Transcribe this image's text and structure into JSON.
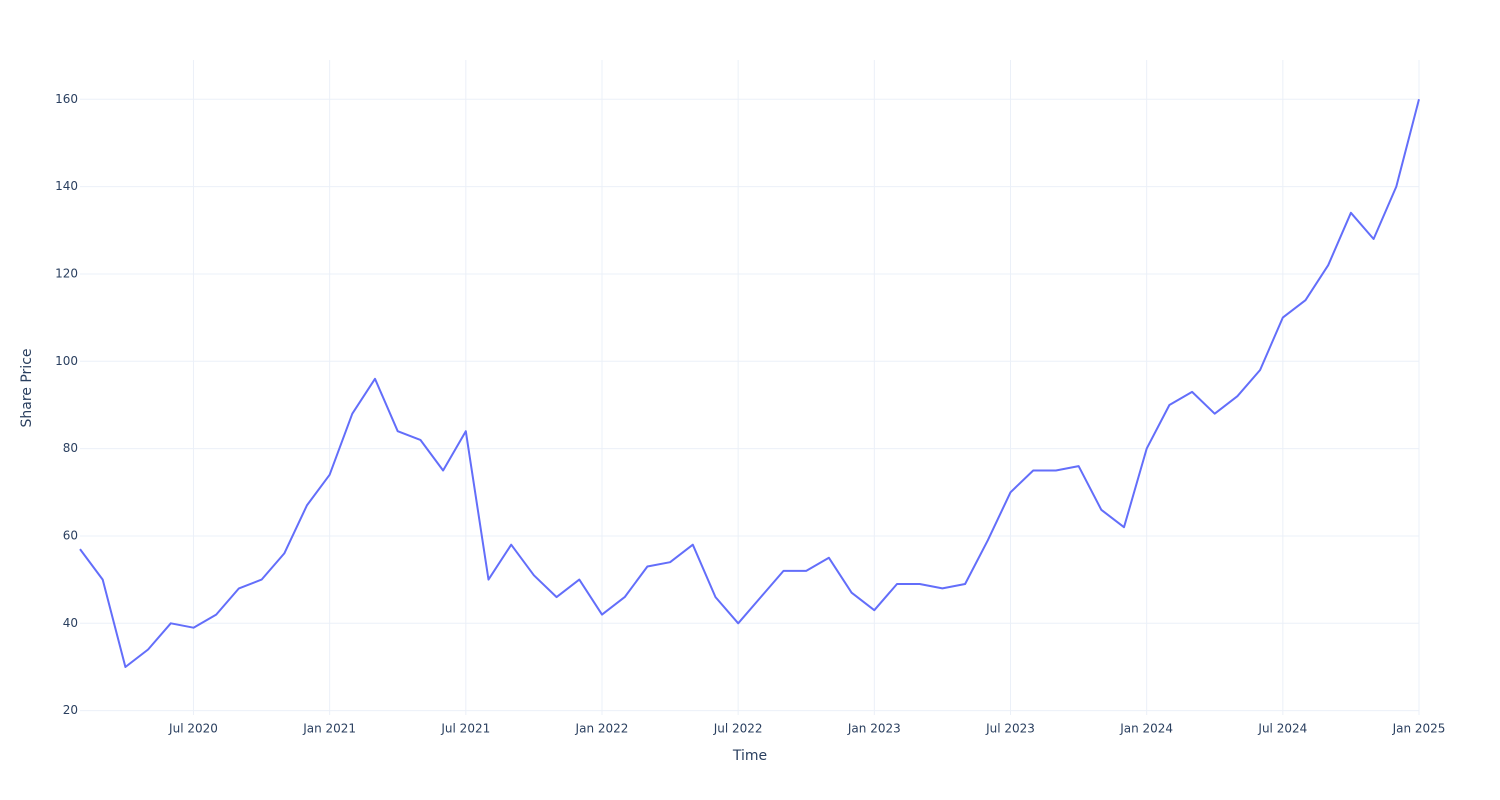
{
  "chart_data": {
    "type": "line",
    "x_label": "Time",
    "y_label": "Share Price",
    "x": [
      "2020-02",
      "2020-03",
      "2020-04",
      "2020-05",
      "2020-06",
      "2020-07",
      "2020-08",
      "2020-09",
      "2020-10",
      "2020-11",
      "2020-12",
      "2021-01",
      "2021-02",
      "2021-03",
      "2021-04",
      "2021-05",
      "2021-06",
      "2021-07",
      "2021-08",
      "2021-09",
      "2021-10",
      "2021-11",
      "2021-12",
      "2022-01",
      "2022-02",
      "2022-03",
      "2022-04",
      "2022-05",
      "2022-06",
      "2022-07",
      "2022-08",
      "2022-09",
      "2022-10",
      "2022-11",
      "2022-12",
      "2023-01",
      "2023-02",
      "2023-03",
      "2023-04",
      "2023-05",
      "2023-06",
      "2023-07",
      "2023-08",
      "2023-09",
      "2023-10",
      "2023-11",
      "2023-12",
      "2024-01",
      "2024-02",
      "2024-03",
      "2024-04",
      "2024-05",
      "2024-06",
      "2024-07",
      "2024-08",
      "2024-09",
      "2024-10",
      "2024-11",
      "2024-12",
      "2025-01"
    ],
    "series": [
      {
        "name": "Share Price",
        "color": "#636efa",
        "values": [
          57,
          50,
          30,
          34,
          40,
          39,
          42,
          48,
          50,
          56,
          67,
          74,
          88,
          96,
          84,
          82,
          75,
          84,
          50,
          58,
          51,
          46,
          50,
          42,
          46,
          53,
          54,
          58,
          46,
          40,
          46,
          52,
          52,
          55,
          47,
          43,
          49,
          49,
          48,
          49,
          59,
          70,
          75,
          75,
          76,
          66,
          62,
          80,
          90,
          93,
          88,
          92,
          98,
          110,
          114,
          122,
          134,
          128,
          140,
          160
        ]
      }
    ],
    "xlim": [
      "2020-02",
      "2025-01"
    ],
    "xticks": [
      {
        "value": "2020-07",
        "label": "Jul 2020"
      },
      {
        "value": "2021-01",
        "label": "Jan 2021"
      },
      {
        "value": "2021-07",
        "label": "Jul 2021"
      },
      {
        "value": "2022-01",
        "label": "Jan 2022"
      },
      {
        "value": "2022-07",
        "label": "Jul 2022"
      },
      {
        "value": "2023-01",
        "label": "Jan 2023"
      },
      {
        "value": "2023-07",
        "label": "Jul 2023"
      },
      {
        "value": "2024-01",
        "label": "Jan 2024"
      },
      {
        "value": "2024-07",
        "label": "Jul 2024"
      },
      {
        "value": "2025-01",
        "label": "Jan 2025"
      }
    ],
    "ylim": [
      19,
      169
    ],
    "yticks": [
      20,
      40,
      60,
      80,
      100,
      120,
      140,
      160
    ],
    "grid": true
  }
}
